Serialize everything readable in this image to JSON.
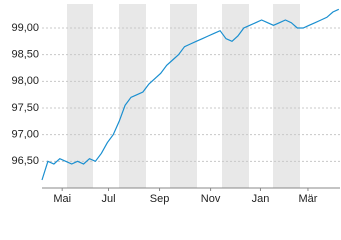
{
  "chart_data": {
    "type": "line",
    "x": [
      0,
      5,
      10,
      15,
      20,
      25,
      30,
      35,
      40,
      45,
      50,
      55,
      60,
      65,
      70,
      75,
      80,
      85,
      90,
      95,
      100,
      105,
      110,
      115,
      120,
      125,
      130,
      135,
      140,
      145,
      150,
      155,
      160,
      165,
      170,
      175,
      180,
      185,
      190,
      195,
      200,
      205,
      210,
      215,
      220,
      225,
      230,
      235,
      240,
      245,
      250
    ],
    "series": [
      {
        "color": "#1a8fd0",
        "values": [
          96.15,
          96.5,
          96.45,
          96.55,
          96.5,
          96.45,
          96.5,
          96.45,
          96.55,
          96.5,
          96.65,
          96.85,
          97.0,
          97.25,
          97.55,
          97.7,
          97.75,
          97.8,
          97.95,
          98.05,
          98.15,
          98.3,
          98.4,
          98.5,
          98.65,
          98.7,
          98.75,
          98.8,
          98.85,
          98.9,
          98.95,
          98.8,
          98.75,
          98.85,
          99.0,
          99.05,
          99.1,
          99.15,
          99.1,
          99.05,
          99.1,
          99.15,
          99.1,
          99.0,
          99.0,
          99.05,
          99.1,
          99.15,
          99.2,
          99.3,
          99.35
        ]
      }
    ],
    "xlim": [
      0,
      251
    ],
    "xticks": [
      {
        "value": 17,
        "label": "Mai"
      },
      {
        "value": 56,
        "label": "Jul"
      },
      {
        "value": 99,
        "label": "Sep"
      },
      {
        "value": 142,
        "label": "Nov"
      },
      {
        "value": 184,
        "label": "Jan"
      },
      {
        "value": 224,
        "label": "Mär"
      }
    ],
    "ylim": [
      96.0,
      99.45
    ],
    "yticks": [
      {
        "value": 96.5,
        "label": "96,50"
      },
      {
        "value": 97.0,
        "label": "97,00"
      },
      {
        "value": 97.5,
        "label": "97,50"
      },
      {
        "value": 98.0,
        "label": "98,00"
      },
      {
        "value": 98.5,
        "label": "98,50"
      },
      {
        "value": 99.0,
        "label": "99,00"
      }
    ],
    "grid": true
  }
}
